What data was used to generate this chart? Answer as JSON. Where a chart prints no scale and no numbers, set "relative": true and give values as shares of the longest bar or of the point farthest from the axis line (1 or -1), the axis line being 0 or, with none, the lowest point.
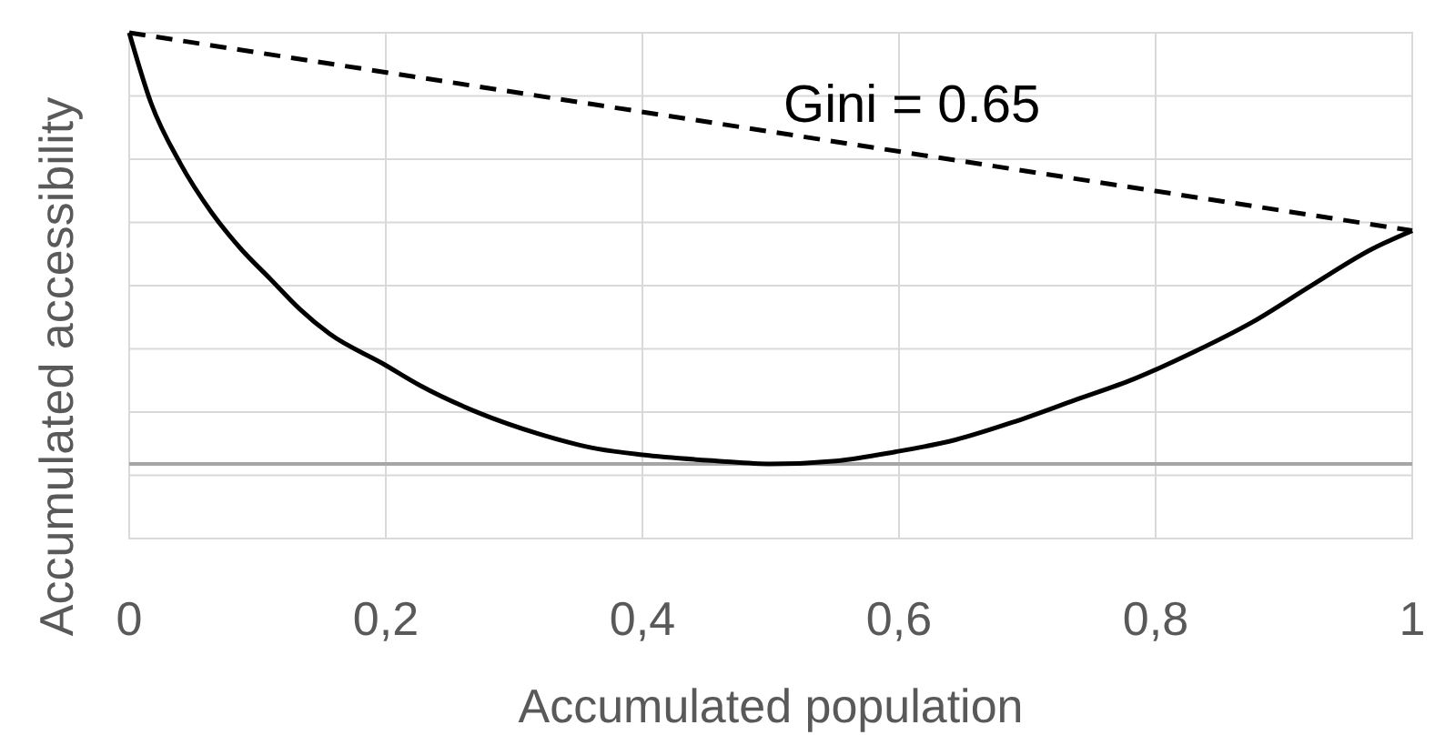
{
  "chart_data": {
    "type": "line",
    "xlabel": "Accumulated population",
    "ylabel": "Accumulated accessibility",
    "relative": true,
    "xlim": [
      0,
      1
    ],
    "xticks": [
      0,
      {
        "value": 0.2,
        "label": "0,2"
      },
      {
        "value": 0.4,
        "label": "0,4"
      },
      {
        "value": 0.6,
        "label": "0,6"
      },
      {
        "value": 0.8,
        "label": "0,8"
      },
      1
    ],
    "grid": true,
    "tick_labels": "x",
    "annotations": [
      "Gini = 0.65"
    ],
    "series": [
      {
        "color": "#000000",
        "line_style": "solid",
        "x": [
          0,
          0.017,
          0.04,
          0.064,
          0.087,
          0.11,
          0.133,
          0.156,
          0.198,
          0.226,
          0.272,
          0.319,
          0.365,
          0.4,
          0.458,
          0.5,
          0.551,
          0.597,
          0.644,
          0.69,
          0.737,
          0.783,
          0.83,
          0.876,
          0.922,
          0.969,
          1
        ],
        "values": [
          1,
          0.837,
          0.696,
          0.584,
          0.499,
          0.429,
          0.359,
          0.302,
          0.232,
          0.183,
          0.119,
          0.07,
          0.035,
          0.021,
          0.007,
          0,
          0.007,
          0.028,
          0.056,
          0.098,
          0.148,
          0.197,
          0.26,
          0.33,
          0.415,
          0.499,
          0.541
        ]
      },
      {
        "color": "#000000",
        "line_style": "dashed",
        "x": [
          0,
          1
        ],
        "values": [
          1,
          0.541
        ]
      }
    ]
  }
}
